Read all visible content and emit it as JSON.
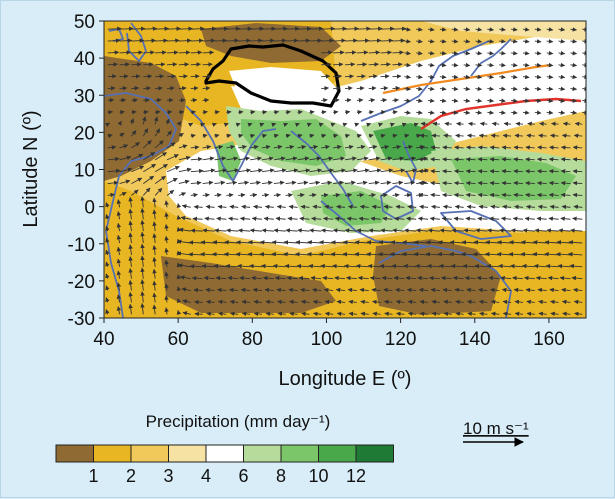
{
  "figure": {
    "y_axis_title": "Latitude N (º)",
    "x_axis_title": "Longitude E (º)",
    "colorbar_title": "Precipitation (mm day⁻¹)",
    "scale_arrow_label": "10 m s⁻¹"
  },
  "axes": {
    "x_ticks": [
      "40",
      "60",
      "80",
      "100",
      "120",
      "140",
      "160"
    ],
    "x_tick_values": [
      40,
      60,
      80,
      100,
      120,
      140,
      160
    ],
    "y_ticks": [
      "50",
      "40",
      "30",
      "20",
      "10",
      "0",
      "-10",
      "-20",
      "-30"
    ],
    "y_tick_values": [
      50,
      40,
      30,
      20,
      10,
      0,
      -10,
      -20,
      -30
    ],
    "xlim": [
      40,
      170
    ],
    "ylim": [
      -30,
      50
    ]
  },
  "colorbar": {
    "tick_labels": [
      "1",
      "2",
      "3",
      "4",
      "6",
      "8",
      "10",
      "12"
    ],
    "colors": [
      "#8f6a32",
      "#e8b623",
      "#f0c95a",
      "#f6e2a2",
      "#ffffff",
      "#b5dc9a",
      "#7cc66a",
      "#48a84a",
      "#1f7a35"
    ]
  },
  "colors": {
    "background": "#d8edf8",
    "dry_brown": "#8f6a32",
    "dry_orange": "#e8b623",
    "dry_yellow": "#f0c95a",
    "pale": "#f6e2a2",
    "wet_light": "#b5dc9a",
    "wet_mid": "#7cc66a",
    "wet_dark": "#48a84a",
    "coastline": "#5670b4",
    "front_orange": "#f08b22",
    "front_red": "#e0332a",
    "plateau_outline": "#000000",
    "wind_vector": "#333333"
  }
}
